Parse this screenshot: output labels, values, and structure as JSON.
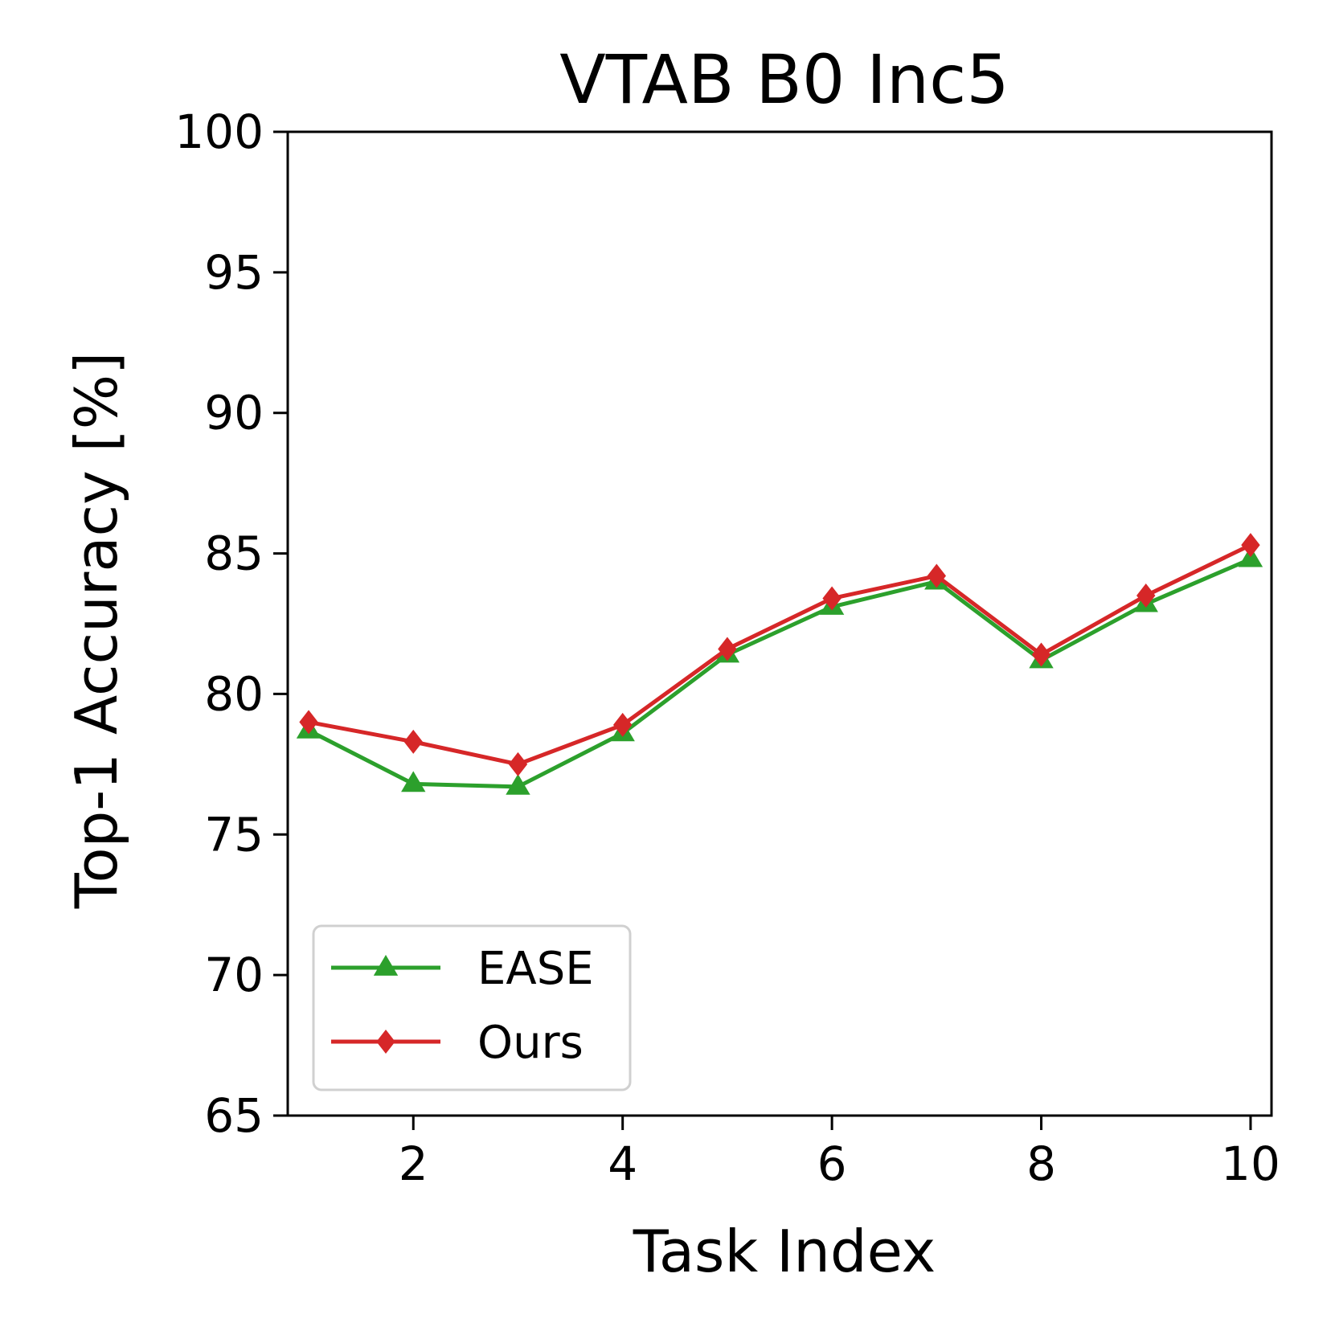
{
  "chart_data": {
    "type": "line",
    "title": "VTAB B0 Inc5",
    "xlabel": "Task Index",
    "ylabel": "Top-1 Accuracy [%]",
    "x": [
      1,
      2,
      3,
      4,
      5,
      6,
      7,
      8,
      9,
      10
    ],
    "xlim": [
      0.8,
      10.2
    ],
    "ylim": [
      65,
      100
    ],
    "xticks": [
      2,
      4,
      6,
      8,
      10
    ],
    "yticks": [
      65,
      70,
      75,
      80,
      85,
      90,
      95,
      100
    ],
    "grid": false,
    "legend_position": "lower-left",
    "series": [
      {
        "name": "EASE",
        "marker": "triangle",
        "color": "#2ca02c",
        "values": [
          78.7,
          76.8,
          76.7,
          78.6,
          81.4,
          83.1,
          84.0,
          81.2,
          83.2,
          84.8
        ]
      },
      {
        "name": "Ours",
        "marker": "diamond",
        "color": "#d62728",
        "values": [
          79.0,
          78.3,
          77.5,
          78.9,
          81.6,
          83.4,
          84.2,
          81.4,
          83.5,
          85.3
        ]
      }
    ]
  }
}
